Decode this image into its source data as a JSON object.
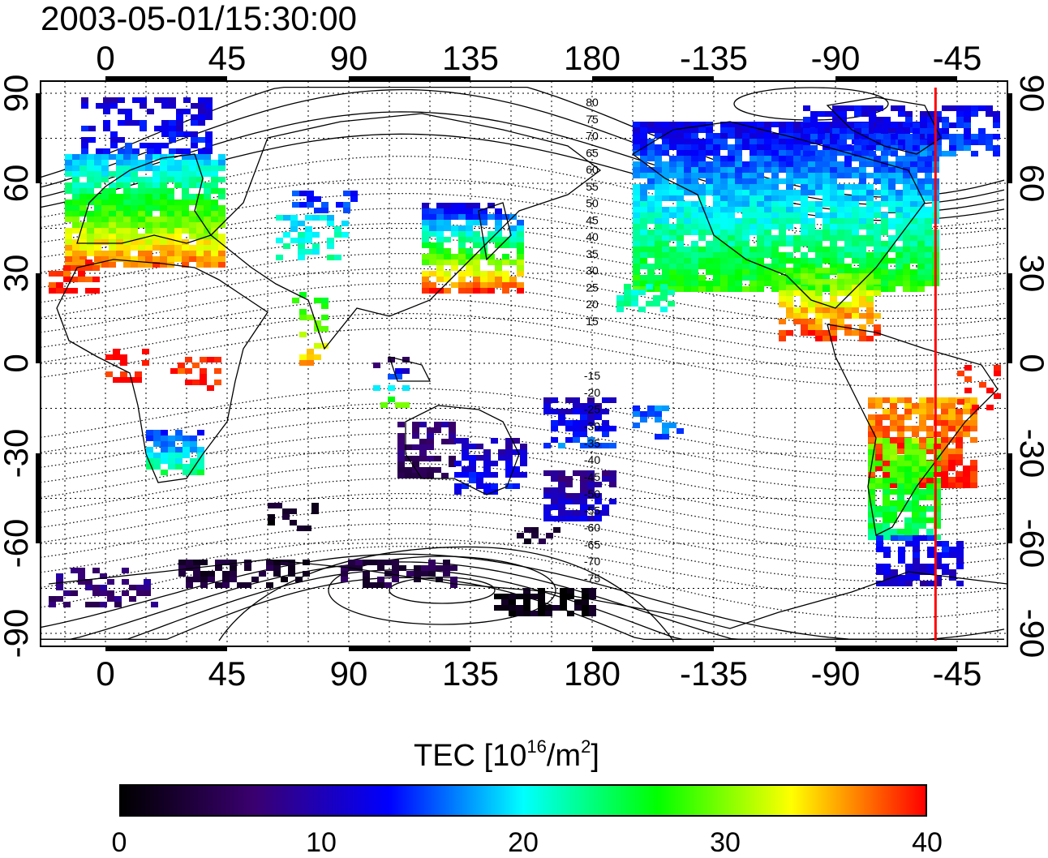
{
  "title": "2003-05-01/15:30:00",
  "colorbar": {
    "label_prefix": "TEC  [10",
    "label_exp1": "16",
    "label_mid": "/m",
    "label_exp2": "2",
    "label_suffix": "]",
    "ticks": [
      "0",
      "10",
      "20",
      "30",
      "40"
    ],
    "min": 0,
    "max": 40,
    "colormap": [
      "#000000",
      "#3a0070",
      "#0000ff",
      "#00ffff",
      "#00ff00",
      "#ffff00",
      "#ff0000"
    ]
  },
  "map": {
    "longitude_ticks": [
      "0",
      "45",
      "90",
      "135",
      "180",
      "-135",
      "-90",
      "-45"
    ],
    "latitude_ticks": [
      "90",
      "60",
      "30",
      "0",
      "-30",
      "-60",
      "-90"
    ],
    "contour_labels": [
      "80",
      "75",
      "70",
      "65",
      "60",
      "55",
      "50",
      "45",
      "40",
      "35",
      "30",
      "25",
      "20",
      "15",
      "-15",
      "-20",
      "-25",
      "-30",
      "-35",
      "-40",
      "-45",
      "-50",
      "-55",
      "-60",
      "-65",
      "-70",
      "-75"
    ],
    "marker_longitude": -53,
    "marker_color": "#ff0000"
  }
}
